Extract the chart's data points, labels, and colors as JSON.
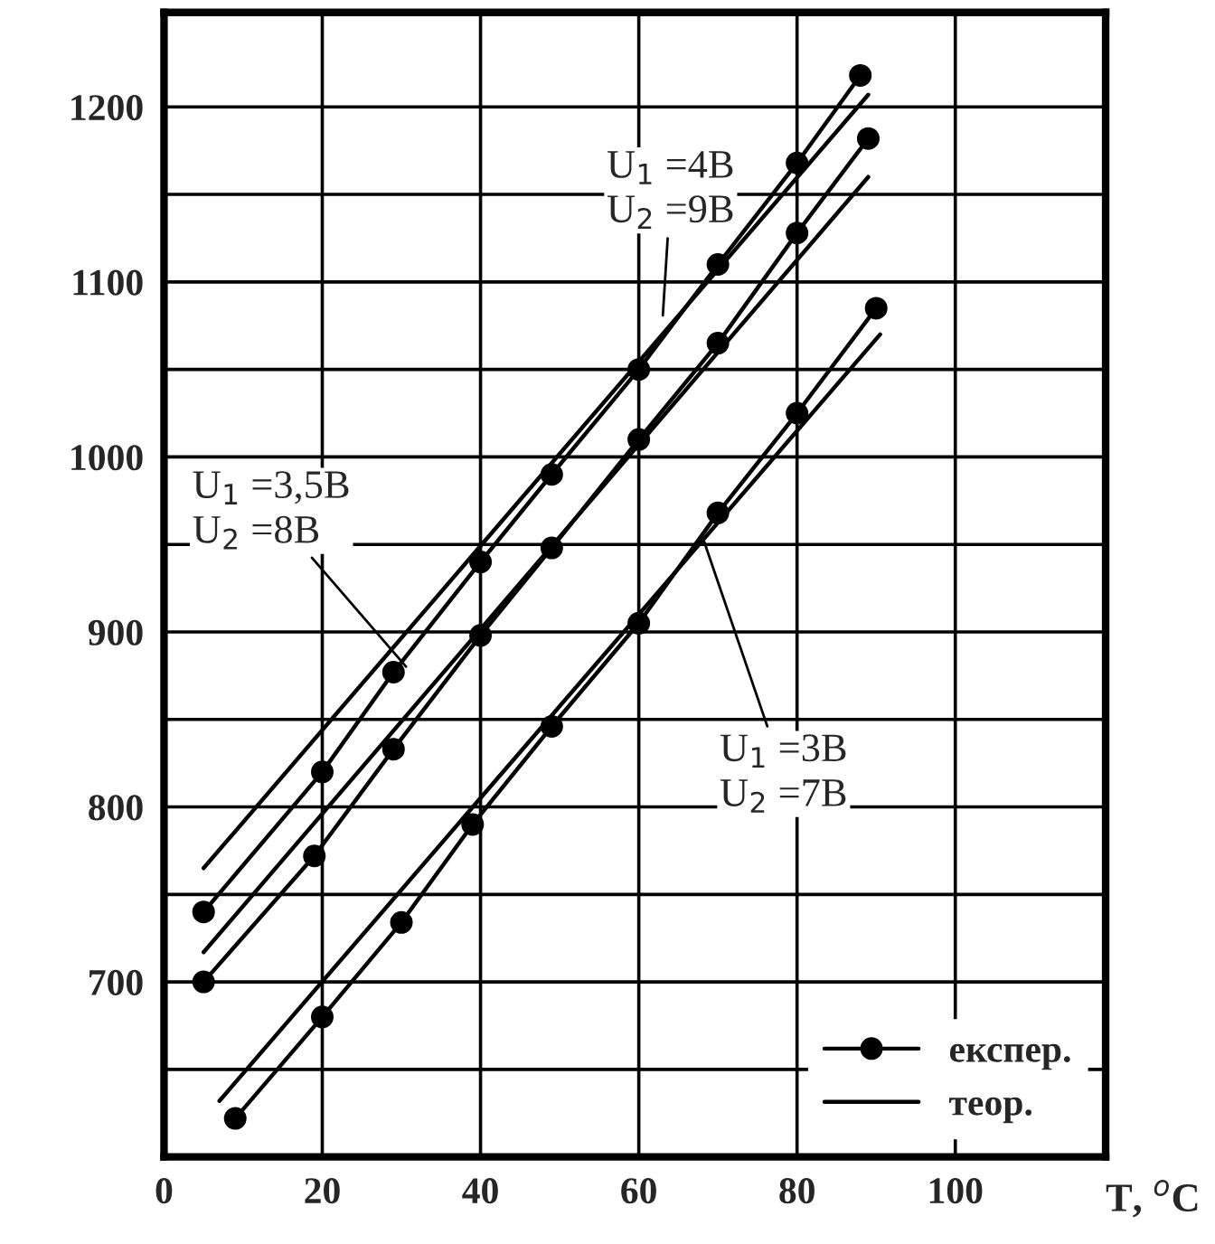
{
  "chart_data": {
    "type": "line",
    "x": [
      5,
      20,
      29,
      40,
      49,
      60,
      70,
      80,
      88
    ],
    "series": [
      {
        "name": "експер.",
        "color": "#000000",
        "marker": "circle",
        "values": [
          740,
          820,
          877,
          940,
          990,
          1050,
          1110,
          1168,
          1218
        ]
      },
      {
        "color": "#000000",
        "marker": "circle",
        "x": [
          5,
          19,
          29,
          40,
          49,
          60,
          70,
          80,
          89
        ],
        "values": [
          700,
          772,
          833,
          898,
          948,
          1010,
          1065,
          1128,
          1182
        ]
      },
      {
        "color": "#000000",
        "marker": "circle",
        "x": [
          9,
          20,
          30,
          39,
          49,
          60,
          70,
          80,
          90
        ],
        "values": [
          622,
          680,
          734,
          790,
          846,
          905,
          968,
          1025,
          1085
        ]
      },
      {
        "name": "теор.",
        "color": "#000000",
        "marker": "none",
        "x": [
          5,
          89
        ],
        "values": [
          765,
          1207
        ]
      },
      {
        "color": "#000000",
        "marker": "none",
        "x": [
          5,
          89
        ],
        "values": [
          717,
          1160
        ]
      },
      {
        "color": "#000000",
        "marker": "none",
        "x": [
          7,
          90.5
        ],
        "values": [
          632,
          1070
        ]
      }
    ],
    "xlabel": "T, $^{o}$C",
    "xlim": [
      0,
      119
    ],
    "xticks": [
      0,
      20,
      40,
      60,
      80,
      100
    ],
    "ylim": [
      600,
      1254
    ],
    "yticks": [
      {
        "value": 650,
        "label": null
      },
      700,
      {
        "value": 750,
        "label": null
      },
      800,
      {
        "value": 850,
        "label": null
      },
      900,
      {
        "value": 950,
        "label": null
      },
      1000,
      {
        "value": 1050,
        "label": null
      },
      1100,
      {
        "value": 1150,
        "label": null
      },
      1200
    ],
    "grid": true,
    "legend": "bottom right",
    "line_style": "solid",
    "annotations": [
      {
        "text": "U$_{1}$ =4В\nU$_{2}$ =9В",
        "x": 63,
        "y": 1078
      },
      {
        "text": "U$_{1}$ =3,5В\nU$_{2}$ =8В",
        "x": 31,
        "y": 878
      },
      {
        "text": "U$_{1}$ =3В\nU$_{2}$ =7В",
        "x": 68,
        "y": 955
      }
    ]
  }
}
